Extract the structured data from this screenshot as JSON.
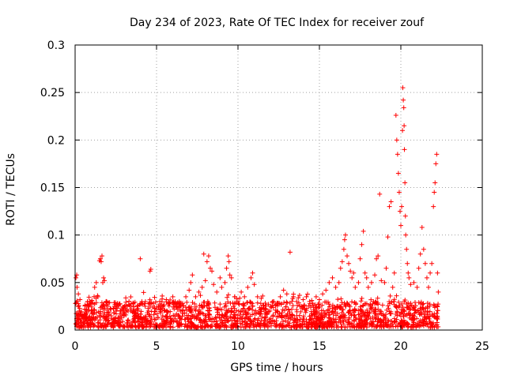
{
  "chart_data": {
    "type": "scatter",
    "title": "Day 234 of 2023, Rate Of TEC Index for receiver zouf",
    "xlabel": "GPS time / hours",
    "ylabel": "ROTI / TECUs",
    "xlim": [
      0,
      25
    ],
    "ylim": [
      0,
      0.3
    ],
    "xticks": [
      0,
      5,
      10,
      15,
      20,
      25
    ],
    "xtick_labels": [
      "0",
      "5",
      "10",
      "15",
      "20",
      "25"
    ],
    "yticks": [
      0,
      0.05,
      0.1,
      0.15,
      0.2,
      0.25,
      0.3
    ],
    "ytick_labels": [
      "0",
      "0.05",
      "0.1",
      "0.15",
      "0.2",
      "0.25",
      "0.3"
    ],
    "grid": true,
    "marker": "+",
    "color": "#ff0000",
    "series": [
      {
        "name": "ROTI",
        "points": [
          [
            0.05,
            0.055
          ],
          [
            0.1,
            0.058
          ],
          [
            0.12,
            0.045
          ],
          [
            0.2,
            0.038
          ],
          [
            0.3,
            0.032
          ],
          [
            0.15,
            0.012
          ],
          [
            0.25,
            0.02
          ],
          [
            0.35,
            0.008
          ],
          [
            0.5,
            0.015
          ],
          [
            0.6,
            0.022
          ],
          [
            0.7,
            0.018
          ],
          [
            0.8,
            0.025
          ],
          [
            0.9,
            0.03
          ],
          [
            1.0,
            0.02
          ],
          [
            1.1,
            0.028
          ],
          [
            1.2,
            0.045
          ],
          [
            1.3,
            0.05
          ],
          [
            1.4,
            0.035
          ],
          [
            1.5,
            0.073
          ],
          [
            1.55,
            0.075
          ],
          [
            1.6,
            0.072
          ],
          [
            1.65,
            0.078
          ],
          [
            1.7,
            0.05
          ],
          [
            1.75,
            0.055
          ],
          [
            1.8,
            0.052
          ],
          [
            1.9,
            0.03
          ],
          [
            2.0,
            0.025
          ],
          [
            2.2,
            0.022
          ],
          [
            2.4,
            0.018
          ],
          [
            2.6,
            0.028
          ],
          [
            2.8,
            0.02
          ],
          [
            3.0,
            0.015
          ],
          [
            3.2,
            0.025
          ],
          [
            3.4,
            0.02
          ],
          [
            3.6,
            0.018
          ],
          [
            3.8,
            0.022
          ],
          [
            4.0,
            0.075
          ],
          [
            4.1,
            0.03
          ],
          [
            4.3,
            0.025
          ],
          [
            4.5,
            0.02
          ],
          [
            4.6,
            0.062
          ],
          [
            4.65,
            0.064
          ],
          [
            4.8,
            0.028
          ],
          [
            5.0,
            0.022
          ],
          [
            5.2,
            0.03
          ],
          [
            5.4,
            0.025
          ],
          [
            5.6,
            0.032
          ],
          [
            5.8,
            0.028
          ],
          [
            6.0,
            0.035
          ],
          [
            6.2,
            0.025
          ],
          [
            6.4,
            0.03
          ],
          [
            6.6,
            0.028
          ],
          [
            6.8,
            0.035
          ],
          [
            7.0,
            0.042
          ],
          [
            7.1,
            0.05
          ],
          [
            7.2,
            0.058
          ],
          [
            7.4,
            0.035
          ],
          [
            7.6,
            0.04
          ],
          [
            7.8,
            0.045
          ],
          [
            7.9,
            0.08
          ],
          [
            8.0,
            0.052
          ],
          [
            8.1,
            0.072
          ],
          [
            8.2,
            0.078
          ],
          [
            8.3,
            0.065
          ],
          [
            8.4,
            0.062
          ],
          [
            8.5,
            0.048
          ],
          [
            8.7,
            0.04
          ],
          [
            8.9,
            0.055
          ],
          [
            9.0,
            0.045
          ],
          [
            9.2,
            0.05
          ],
          [
            9.3,
            0.065
          ],
          [
            9.4,
            0.078
          ],
          [
            9.45,
            0.072
          ],
          [
            9.5,
            0.058
          ],
          [
            9.6,
            0.055
          ],
          [
            9.8,
            0.035
          ],
          [
            10.0,
            0.03
          ],
          [
            10.2,
            0.04
          ],
          [
            10.4,
            0.035
          ],
          [
            10.6,
            0.045
          ],
          [
            10.8,
            0.055
          ],
          [
            10.9,
            0.06
          ],
          [
            11.0,
            0.048
          ],
          [
            11.2,
            0.035
          ],
          [
            11.4,
            0.028
          ],
          [
            11.6,
            0.022
          ],
          [
            11.8,
            0.018
          ],
          [
            12.0,
            0.025
          ],
          [
            12.2,
            0.03
          ],
          [
            12.4,
            0.028
          ],
          [
            12.6,
            0.035
          ],
          [
            12.8,
            0.042
          ],
          [
            13.0,
            0.038
          ],
          [
            13.2,
            0.082
          ],
          [
            13.4,
            0.035
          ],
          [
            13.6,
            0.03
          ],
          [
            13.8,
            0.025
          ],
          [
            14.0,
            0.032
          ],
          [
            14.2,
            0.035
          ],
          [
            14.4,
            0.03
          ],
          [
            14.6,
            0.028
          ],
          [
            14.8,
            0.035
          ],
          [
            15.0,
            0.032
          ],
          [
            15.2,
            0.038
          ],
          [
            15.4,
            0.042
          ],
          [
            15.6,
            0.05
          ],
          [
            15.8,
            0.055
          ],
          [
            16.0,
            0.045
          ],
          [
            16.2,
            0.05
          ],
          [
            16.3,
            0.065
          ],
          [
            16.4,
            0.072
          ],
          [
            16.5,
            0.085
          ],
          [
            16.55,
            0.095
          ],
          [
            16.6,
            0.1
          ],
          [
            16.7,
            0.078
          ],
          [
            16.8,
            0.07
          ],
          [
            16.9,
            0.062
          ],
          [
            17.0,
            0.055
          ],
          [
            17.1,
            0.06
          ],
          [
            17.2,
            0.045
          ],
          [
            17.4,
            0.05
          ],
          [
            17.5,
            0.075
          ],
          [
            17.6,
            0.09
          ],
          [
            17.7,
            0.104
          ],
          [
            17.8,
            0.06
          ],
          [
            17.9,
            0.055
          ],
          [
            18.0,
            0.045
          ],
          [
            18.2,
            0.05
          ],
          [
            18.4,
            0.058
          ],
          [
            18.5,
            0.075
          ],
          [
            18.6,
            0.078
          ],
          [
            18.7,
            0.143
          ],
          [
            18.8,
            0.052
          ],
          [
            19.0,
            0.05
          ],
          [
            19.1,
            0.065
          ],
          [
            19.2,
            0.098
          ],
          [
            19.3,
            0.13
          ],
          [
            19.4,
            0.135
          ],
          [
            19.5,
            0.045
          ],
          [
            19.6,
            0.06
          ],
          [
            19.7,
            0.226
          ],
          [
            19.75,
            0.2
          ],
          [
            19.8,
            0.185
          ],
          [
            19.85,
            0.165
          ],
          [
            19.9,
            0.145
          ],
          [
            19.95,
            0.125
          ],
          [
            20.0,
            0.11
          ],
          [
            20.05,
            0.13
          ],
          [
            20.1,
            0.21
          ],
          [
            20.12,
            0.255
          ],
          [
            20.15,
            0.242
          ],
          [
            20.18,
            0.234
          ],
          [
            20.2,
            0.215
          ],
          [
            20.22,
            0.19
          ],
          [
            20.25,
            0.155
          ],
          [
            20.28,
            0.12
          ],
          [
            20.3,
            0.1
          ],
          [
            20.35,
            0.085
          ],
          [
            20.4,
            0.07
          ],
          [
            20.45,
            0.06
          ],
          [
            20.5,
            0.055
          ],
          [
            20.6,
            0.048
          ],
          [
            20.8,
            0.05
          ],
          [
            21.0,
            0.045
          ],
          [
            21.1,
            0.065
          ],
          [
            21.2,
            0.08
          ],
          [
            21.3,
            0.108
          ],
          [
            21.4,
            0.085
          ],
          [
            21.5,
            0.07
          ],
          [
            21.6,
            0.055
          ],
          [
            21.7,
            0.045
          ],
          [
            21.8,
            0.06
          ],
          [
            21.9,
            0.07
          ],
          [
            22.0,
            0.13
          ],
          [
            22.05,
            0.145
          ],
          [
            22.1,
            0.155
          ],
          [
            22.15,
            0.175
          ],
          [
            22.2,
            0.185
          ],
          [
            22.25,
            0.06
          ],
          [
            22.3,
            0.04
          ]
        ],
        "baseline": {
          "x_range": [
            0,
            22.3
          ],
          "y_range": [
            0.003,
            0.03
          ]
        }
      }
    ]
  }
}
